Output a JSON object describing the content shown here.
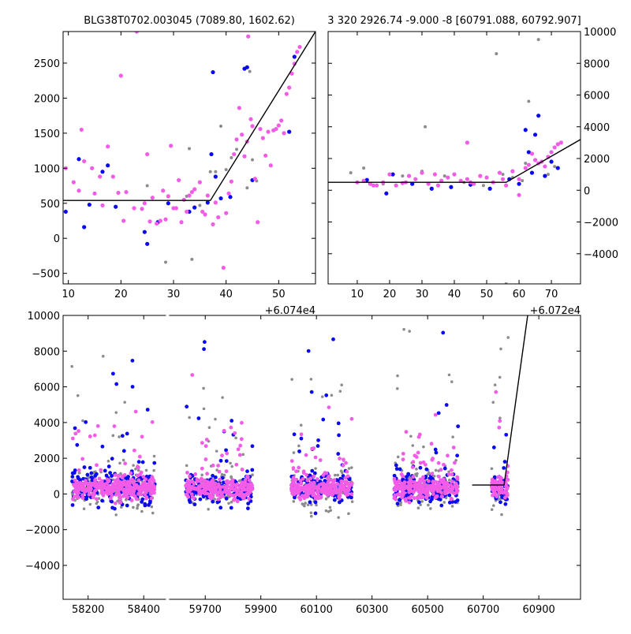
{
  "colors": {
    "gray": "#8c8c8c",
    "blue": "#0a0af0",
    "magenta": "#f25ce6",
    "line": "#000000"
  },
  "chart_data": [
    {
      "type": "scatter",
      "title": "BLG38T0702.003045 (7089.80, 1602.62)",
      "xlim": [
        9,
        57
      ],
      "ylim": [
        -650,
        2950
      ],
      "xticks": [
        10,
        20,
        30,
        40,
        50
      ],
      "yticks": [
        -500,
        0,
        500,
        1000,
        1500,
        2000,
        2500
      ],
      "x_offset_label": "+6.074e4",
      "model_line": {
        "x": [
          9,
          37,
          57
        ],
        "y": [
          540,
          540,
          2950
        ]
      },
      "series": [
        {
          "color": "magenta",
          "points": [
            [
              9.5,
              1000
            ],
            [
              11,
              800
            ],
            [
              12,
              680
            ],
            [
              12.5,
              1550
            ],
            [
              13,
              1100
            ],
            [
              14.5,
              1000
            ],
            [
              15,
              640
            ],
            [
              16,
              880
            ],
            [
              16.5,
              470
            ],
            [
              17.5,
              1310
            ],
            [
              18.5,
              880
            ],
            [
              19.5,
              650
            ],
            [
              20,
              2320
            ],
            [
              20.5,
              250
            ],
            [
              21,
              660
            ],
            [
              22.5,
              430
            ],
            [
              23,
              2950
            ],
            [
              24,
              420
            ],
            [
              24.5,
              500
            ],
            [
              25,
              1200
            ],
            [
              25.5,
              240
            ],
            [
              26,
              580
            ],
            [
              26.8,
              210
            ],
            [
              27.5,
              250
            ],
            [
              28,
              680
            ],
            [
              28.5,
              270
            ],
            [
              29,
              600
            ],
            [
              29.5,
              1320
            ],
            [
              30,
              430
            ],
            [
              30.5,
              430
            ],
            [
              31,
              830
            ],
            [
              31.5,
              230
            ],
            [
              32,
              550
            ],
            [
              32.5,
              380
            ],
            [
              33,
              610
            ],
            [
              33.5,
              660
            ],
            [
              34,
              700
            ],
            [
              35,
              800
            ],
            [
              35.5,
              380
            ],
            [
              36,
              340
            ],
            [
              36.5,
              610
            ],
            [
              37.5,
              200
            ],
            [
              38,
              510
            ],
            [
              38.5,
              300
            ],
            [
              39.5,
              -420
            ],
            [
              40,
              360
            ],
            [
              40.5,
              640
            ],
            [
              41,
              810
            ],
            [
              41.5,
              1200
            ],
            [
              42,
              1410
            ],
            [
              42.5,
              1860
            ],
            [
              43,
              1480
            ],
            [
              43.5,
              1170
            ],
            [
              44,
              1380
            ],
            [
              44.2,
              2880
            ],
            [
              44.7,
              1700
            ],
            [
              45,
              1600
            ],
            [
              45.5,
              850
            ],
            [
              46,
              230
            ],
            [
              46.5,
              1560
            ],
            [
              47,
              1430
            ],
            [
              47.5,
              1180
            ],
            [
              48,
              1520
            ],
            [
              48.5,
              1040
            ],
            [
              49,
              1540
            ],
            [
              49.5,
              1560
            ],
            [
              50,
              1610
            ],
            [
              50.5,
              1680
            ],
            [
              51,
              1500
            ],
            [
              51.5,
              2060
            ],
            [
              52,
              2150
            ],
            [
              52.5,
              2350
            ],
            [
              53,
              2490
            ],
            [
              53.5,
              2660
            ],
            [
              54,
              2730
            ]
          ]
        },
        {
          "color": "blue",
          "points": [
            [
              9.5,
              380
            ],
            [
              12,
              1130
            ],
            [
              13,
              160
            ],
            [
              14,
              480
            ],
            [
              16.5,
              950
            ],
            [
              17.5,
              1040
            ],
            [
              19,
              450
            ],
            [
              24.5,
              90
            ],
            [
              25,
              -80
            ],
            [
              27,
              230
            ],
            [
              29,
              500
            ],
            [
              33,
              380
            ],
            [
              34,
              440
            ],
            [
              36.5,
              510
            ],
            [
              37.5,
              2370
            ],
            [
              37.2,
              1200
            ],
            [
              38,
              880
            ],
            [
              39,
              570
            ],
            [
              40.8,
              590
            ],
            [
              43.5,
              2420
            ],
            [
              44,
              2440
            ],
            [
              45,
              830
            ],
            [
              52,
              1520
            ],
            [
              53,
              2590
            ]
          ]
        },
        {
          "color": "gray",
          "points": [
            [
              25,
              750
            ],
            [
              28.5,
              -340
            ],
            [
              32.5,
              600
            ],
            [
              33,
              1280
            ],
            [
              33.5,
              -300
            ],
            [
              35,
              470
            ],
            [
              37,
              950
            ],
            [
              38,
              950
            ],
            [
              39,
              1600
            ],
            [
              40,
              980
            ],
            [
              41,
              1150
            ],
            [
              42,
              1270
            ],
            [
              44,
              720
            ],
            [
              44.5,
              2380
            ],
            [
              45,
              1120
            ],
            [
              45.8,
              820
            ]
          ]
        }
      ]
    },
    {
      "type": "scatter",
      "title": "3 320 2926.74 -9.000 -8 [60791.088, 60792.907]",
      "xlim": [
        1,
        79
      ],
      "ylim": [
        -5900,
        10000
      ],
      "xticks": [
        10,
        20,
        30,
        40,
        50,
        60,
        70
      ],
      "yticks": [
        -4000,
        -2000,
        0,
        2000,
        4000,
        6000,
        8000,
        10000
      ],
      "x_offset_label": "+6.072e4",
      "model_line": {
        "x": [
          1,
          56,
          79
        ],
        "y": [
          500,
          500,
          3200
        ]
      },
      "series": [
        {
          "color": "magenta",
          "points": [
            [
              10,
              500
            ],
            [
              12,
              600
            ],
            [
              14,
              400
            ],
            [
              16,
              300
            ],
            [
              18,
              500
            ],
            [
              20,
              1000
            ],
            [
              22,
              300
            ],
            [
              24,
              450
            ],
            [
              26,
              900
            ],
            [
              28,
              700
            ],
            [
              30,
              1100
            ],
            [
              32,
              400
            ],
            [
              34,
              1000
            ],
            [
              36,
              600
            ],
            [
              38,
              800
            ],
            [
              40,
              1000
            ],
            [
              42,
              600
            ],
            [
              44,
              700
            ],
            [
              46,
              400
            ],
            [
              48,
              900
            ],
            [
              50,
              800
            ],
            [
              52,
              500
            ],
            [
              54,
              1100
            ],
            [
              56,
              300
            ],
            [
              58,
              1200
            ],
            [
              60,
              700
            ],
            [
              62,
              1400
            ],
            [
              63,
              1600
            ],
            [
              64,
              2300
            ],
            [
              65,
              1900
            ],
            [
              66,
              1700
            ],
            [
              67,
              1800
            ],
            [
              68,
              1500
            ],
            [
              69,
              2100
            ],
            [
              70,
              2400
            ],
            [
              71,
              2700
            ],
            [
              72,
              2900
            ],
            [
              73,
              3000
            ],
            [
              44,
              3000
            ],
            [
              15,
              300
            ],
            [
              25,
              500
            ],
            [
              35,
              300
            ],
            [
              45,
              500
            ],
            [
              55,
              700
            ],
            [
              60,
              -300
            ]
          ]
        },
        {
          "color": "blue",
          "points": [
            [
              13,
              650
            ],
            [
              19,
              -200
            ],
            [
              21,
              1000
            ],
            [
              27,
              400
            ],
            [
              33,
              100
            ],
            [
              39,
              200
            ],
            [
              45,
              350
            ],
            [
              51,
              100
            ],
            [
              57,
              700
            ],
            [
              60,
              400
            ],
            [
              62,
              3800
            ],
            [
              64,
              1100
            ],
            [
              66,
              4700
            ],
            [
              68,
              900
            ],
            [
              70,
              1800
            ],
            [
              72,
              1400
            ],
            [
              63,
              2400
            ],
            [
              65,
              3500
            ]
          ]
        },
        {
          "color": "gray",
          "points": [
            [
              8,
              1100
            ],
            [
              12,
              1400
            ],
            [
              18,
              400
            ],
            [
              24,
              900
            ],
            [
              30,
              1200
            ],
            [
              31,
              4000
            ],
            [
              37,
              900
            ],
            [
              43,
              500
            ],
            [
              49,
              300
            ],
            [
              53,
              8600
            ],
            [
              55,
              1000
            ],
            [
              58,
              800
            ],
            [
              61,
              600
            ],
            [
              62,
              1700
            ],
            [
              63,
              5600
            ],
            [
              66,
              9500
            ],
            [
              69,
              1000
            ],
            [
              71,
              1500
            ],
            [
              56,
              -5900
            ]
          ]
        }
      ]
    },
    {
      "type": "scatter",
      "xlim": [
        58110,
        61050
      ],
      "ylim": [
        -5900,
        10000
      ],
      "xticks": [
        58200,
        58400,
        59700,
        59900,
        60100,
        60300,
        60500,
        60700,
        60900
      ],
      "yticks": [
        -4000,
        -2000,
        0,
        2000,
        4000,
        6000,
        8000,
        10000
      ],
      "x_segments": [
        [
          58110,
          58480
        ],
        [
          59570,
          61050
        ]
      ],
      "model_line": {
        "x": [
          60660,
          60775,
          60860
        ],
        "y": [
          500,
          500,
          10000
        ]
      },
      "clusters": [
        {
          "x_from": 58140,
          "x_to": 58440
        },
        {
          "x_from": 59630,
          "x_to": 59870
        },
        {
          "x_from": 60010,
          "x_to": 60230
        },
        {
          "x_from": 60380,
          "x_to": 60610
        },
        {
          "x_from": 60730,
          "x_to": 60790
        }
      ]
    }
  ]
}
